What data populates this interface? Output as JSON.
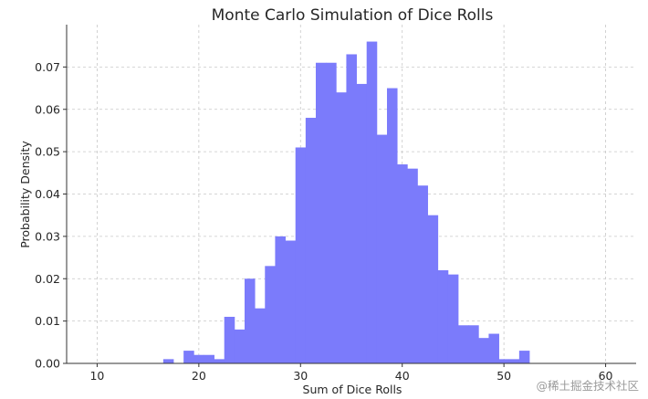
{
  "chart_data": {
    "type": "bar",
    "subtype": "histogram",
    "title": "Monte Carlo Simulation of Dice Rolls",
    "xlabel": "Sum of Dice Rolls",
    "ylabel": "Probability Density",
    "xlim": [
      7,
      63
    ],
    "ylim": [
      0,
      0.08
    ],
    "xticks": [
      10,
      20,
      30,
      40,
      50,
      60
    ],
    "yticks": [
      0.0,
      0.01,
      0.02,
      0.03,
      0.04,
      0.05,
      0.06,
      0.07
    ],
    "ytick_labels": [
      "0.00",
      "0.01",
      "0.02",
      "0.03",
      "0.04",
      "0.05",
      "0.06",
      "0.07"
    ],
    "grid": true,
    "bar_color": "#7b7bfb",
    "bin_start": 16.5,
    "bin_width": 1.0,
    "values": [
      0.001,
      0.0,
      0.003,
      0.002,
      0.002,
      0.001,
      0.011,
      0.008,
      0.02,
      0.013,
      0.023,
      0.03,
      0.029,
      0.051,
      0.058,
      0.071,
      0.071,
      0.064,
      0.073,
      0.066,
      0.076,
      0.054,
      0.065,
      0.047,
      0.046,
      0.042,
      0.035,
      0.022,
      0.021,
      0.009,
      0.009,
      0.006,
      0.007,
      0.001,
      0.001,
      0.003
    ]
  },
  "watermark": "@稀土掘金技术社区"
}
